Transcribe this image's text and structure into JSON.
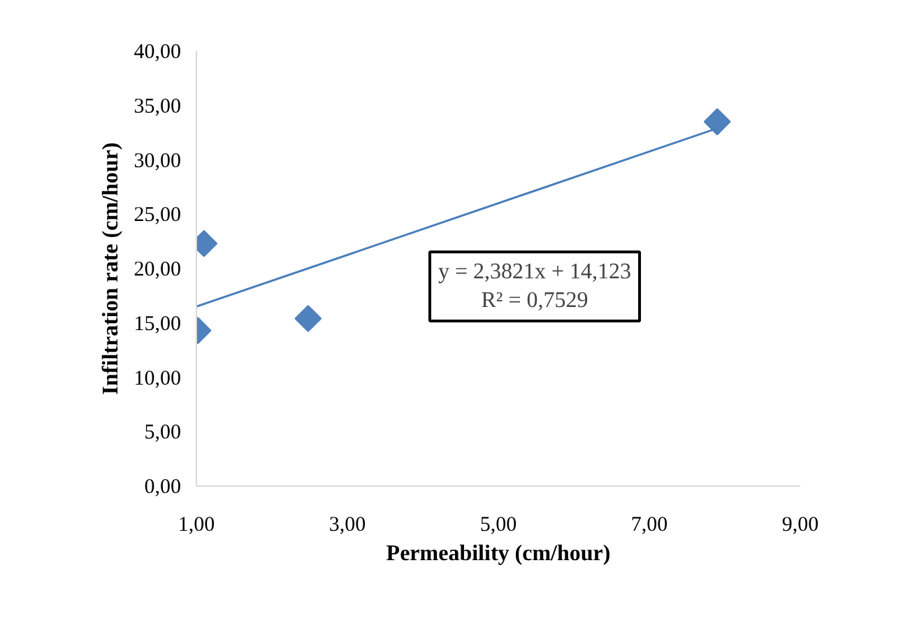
{
  "chart_data": {
    "type": "scatter",
    "xlabel": "Permeability (cm/hour)",
    "ylabel": "Infiltration rate (cm/hour)",
    "x": [
      1.02,
      1.1,
      2.48,
      7.9
    ],
    "series": [
      {
        "color": "#4f81bd",
        "marker": "diamond",
        "values": [
          14.3,
          22.3,
          15.4,
          33.5
        ]
      },
      {
        "type": "line",
        "color": "#4a7ebb",
        "marker": "none",
        "x": [
          1.0,
          7.9
        ],
        "values": [
          16.5,
          32.9
        ]
      }
    ],
    "xlim": [
      1,
      9
    ],
    "ylim": [
      0,
      40
    ],
    "xticks": [
      {
        "value": 1,
        "label": "1,00"
      },
      {
        "value": 3,
        "label": "3,00"
      },
      {
        "value": 5,
        "label": "5,00"
      },
      {
        "value": 7,
        "label": "7,00"
      },
      {
        "value": 9,
        "label": "9,00"
      }
    ],
    "yticks": [
      {
        "value": 0,
        "label": "0,00"
      },
      {
        "value": 5,
        "label": "5,00"
      },
      {
        "value": 10,
        "label": "10,00"
      },
      {
        "value": 15,
        "label": "15,00"
      },
      {
        "value": 20,
        "label": "20,00"
      },
      {
        "value": 25,
        "label": "25,00"
      },
      {
        "value": 30,
        "label": "30,00"
      },
      {
        "value": 35,
        "label": "35,00"
      },
      {
        "value": 40,
        "label": "40,00"
      }
    ],
    "annotations": [
      "y = 2,3821x + 14,123\nR² = 0,7529"
    ],
    "grid": false
  }
}
